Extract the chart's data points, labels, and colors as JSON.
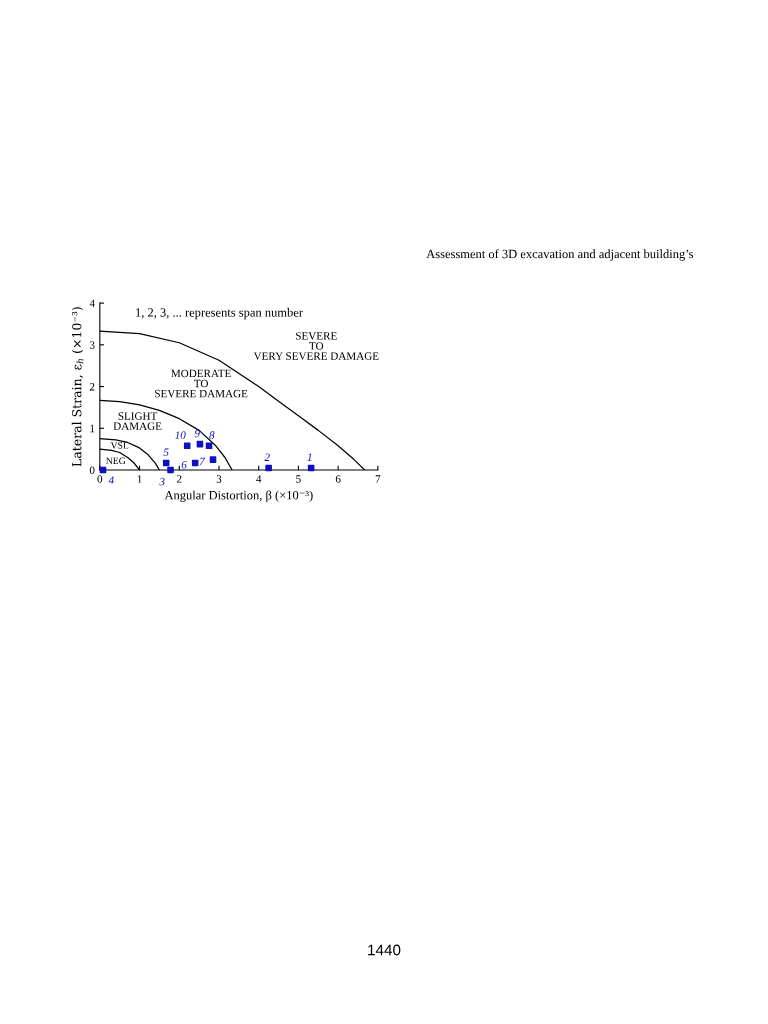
{
  "chart_data": {
    "type": "line",
    "xlabel": "Angular Distortion, β (×10⁻³)",
    "ylabel": "Lateral Strain, ε$_{h}$ (×10⁻³)",
    "xlim": [
      0,
      7
    ],
    "ylim": [
      0,
      4
    ],
    "xticks": [
      0,
      1,
      2,
      3,
      4,
      5,
      6,
      7
    ],
    "yticks": [
      0,
      1,
      2,
      3,
      4
    ],
    "grid": false,
    "legend": false,
    "series": [
      {
        "color": "#000000",
        "x": [
          0,
          0.3,
          0.5,
          0.7,
          0.85,
          1.0
        ],
        "values": [
          0.5,
          0.47,
          0.42,
          0.3,
          0.18,
          0
        ]
      },
      {
        "color": "#000000",
        "x": [
          0,
          0.4,
          0.7,
          1.0,
          1.2,
          1.4,
          1.5
        ],
        "values": [
          0.75,
          0.72,
          0.66,
          0.53,
          0.38,
          0.16,
          0
        ]
      },
      {
        "color": "#000000",
        "x": [
          0,
          0.5,
          1.0,
          1.5,
          2.0,
          2.5,
          2.9,
          3.15,
          3.33
        ],
        "values": [
          1.67,
          1.64,
          1.56,
          1.43,
          1.23,
          0.95,
          0.6,
          0.3,
          0
        ]
      },
      {
        "color": "#000000",
        "x": [
          0,
          1.0,
          2.0,
          3.0,
          4.0,
          4.5,
          5.0,
          5.5,
          6.0,
          6.4,
          6.67
        ],
        "values": [
          3.33,
          3.27,
          3.05,
          2.63,
          2.0,
          1.65,
          1.3,
          0.95,
          0.58,
          0.25,
          0
        ]
      },
      {
        "type": "scatter",
        "color": "#1010c0",
        "marker": "square",
        "x": [
          5.32,
          4.25,
          1.78,
          0.08,
          1.67,
          2.4,
          2.85,
          2.75,
          2.52,
          2.2
        ],
        "values": [
          0.05,
          0.05,
          0.0,
          0.0,
          0.17,
          0.17,
          0.25,
          0.58,
          0.62,
          0.58
        ]
      }
    ],
    "annotations": [
      "Assessment of 3D excavation and adjacent building’s",
      "1440",
      "1, 2, 3, ... represents span number",
      "SEVERE\nTO\nVERY SEVERE DAMAGE",
      "MODERATE\nTO\nSEVERE DAMAGE",
      "SLIGHT\nDAMAGE",
      "VSL",
      "NEG",
      {
        "text": "1",
        "x": 5.32,
        "y": 0.05
      },
      {
        "text": "2",
        "x": 4.25,
        "y": 0.05
      },
      {
        "text": "3",
        "x": 1.78,
        "y": 0.0
      },
      {
        "text": "4",
        "x": 0.08,
        "y": 0.0
      },
      {
        "text": "5",
        "x": 1.67,
        "y": 0.17
      },
      {
        "text": "6",
        "x": 2.4,
        "y": 0.17
      },
      {
        "text": "7",
        "x": 2.85,
        "y": 0.25
      },
      {
        "text": "8",
        "x": 2.75,
        "y": 0.58
      },
      {
        "text": "9",
        "x": 2.52,
        "y": 0.62
      },
      {
        "text": "10",
        "x": 2.2,
        "y": 0.58
      }
    ]
  }
}
